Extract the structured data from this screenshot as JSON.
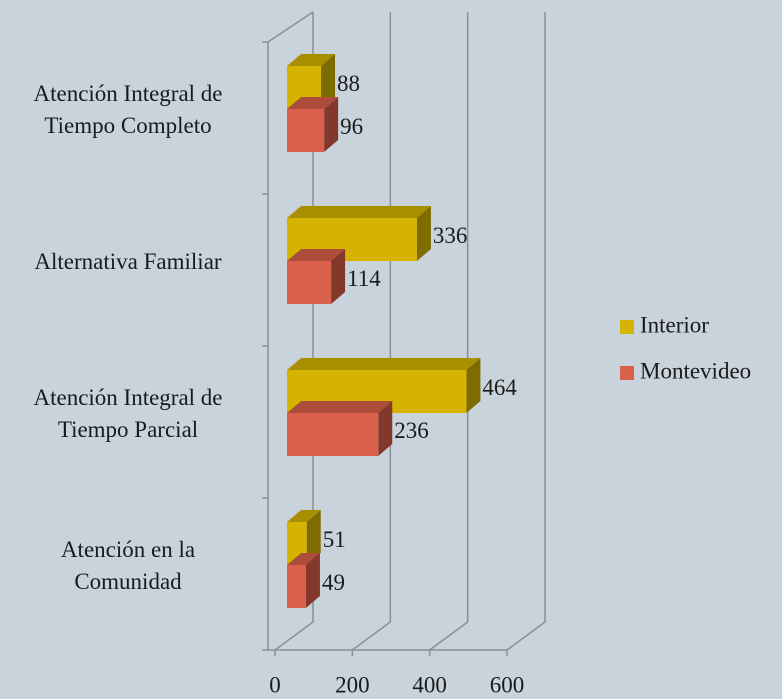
{
  "chart_data": {
    "type": "bar3d_horizontal",
    "categories": [
      "Atención Integral de Tiempo Completo",
      "Alternativa Familiar",
      "Atención Integral de Tiempo Parcial",
      "Atención en la Comunidad"
    ],
    "series": [
      {
        "name": "Interior",
        "color": "#d4b400",
        "values": [
          88,
          336,
          464,
          51
        ]
      },
      {
        "name": "Montevideo",
        "color": "#d9604a",
        "values": [
          96,
          114,
          236,
          49
        ]
      }
    ],
    "xlim": [
      0,
      600
    ],
    "xticks": [
      0,
      200,
      400,
      600
    ],
    "grid": true,
    "legend": "right"
  }
}
